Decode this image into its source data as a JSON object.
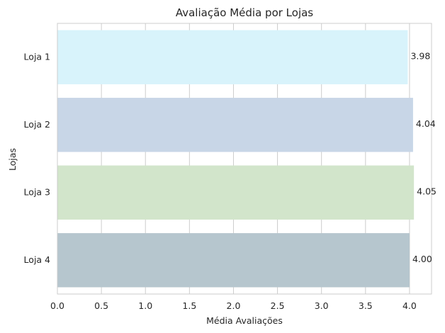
{
  "chart_data": {
    "type": "bar",
    "orientation": "horizontal",
    "title": "Avaliação Média por Lojas",
    "xlabel": "Média Avaliações",
    "ylabel": "Lojas",
    "categories": [
      "Loja 1",
      "Loja 2",
      "Loja 3",
      "Loja 4"
    ],
    "values": [
      3.98,
      4.04,
      4.05,
      4.0
    ],
    "value_labels": [
      "3.98",
      "4.04",
      "4.05",
      "4.00"
    ],
    "xlim": [
      0,
      4.25
    ],
    "xticks": [
      0.0,
      0.5,
      1.0,
      1.5,
      2.0,
      2.5,
      3.0,
      3.5,
      4.0
    ],
    "xtick_labels": [
      "0.0",
      "0.5",
      "1.0",
      "1.5",
      "2.0",
      "2.5",
      "3.0",
      "3.5",
      "4.0"
    ],
    "grid": "vertical",
    "bar_colors": [
      "#d8f3fb",
      "#c8d6e7",
      "#d2e5cb",
      "#b6c6ce"
    ]
  }
}
